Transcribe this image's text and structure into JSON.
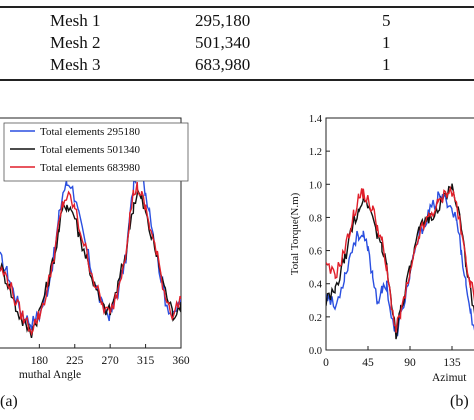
{
  "mesh_table": {
    "rows": [
      {
        "name": "Mesh 1",
        "elements": "295,180",
        "value": "5"
      },
      {
        "name": "Mesh 2",
        "elements": "501,340",
        "value": "1"
      },
      {
        "name": "Mesh 3",
        "elements": "683,980",
        "value": "1"
      }
    ]
  },
  "panel_labels": {
    "a": "(a)",
    "b": "(b)"
  },
  "chart_data": [
    {
      "type": "line",
      "xlabel": "muthal Angle",
      "ylabel": "",
      "xlim": [
        130,
        360
      ],
      "ylim": [
        0,
        1.4
      ],
      "xticks": [
        "180",
        "225",
        "270",
        "315",
        "360"
      ],
      "legend_placement": "top-left",
      "colors": {
        "Total elements 295180": "#2a4fe0",
        "Total elements 501340": "#111111",
        "Total elements 683980": "#e01f2a"
      },
      "series": [
        {
          "name": "Total elements 295180",
          "x": [
            130,
            140,
            150,
            160,
            170,
            180,
            190,
            200,
            205,
            210,
            215,
            220,
            225,
            230,
            240,
            250,
            260,
            270,
            280,
            290,
            295,
            300,
            305,
            310,
            315,
            320,
            330,
            340,
            350,
            360
          ],
          "y": [
            0.55,
            0.45,
            0.3,
            0.2,
            0.15,
            0.2,
            0.35,
            0.6,
            0.8,
            0.95,
            1.0,
            1.0,
            0.92,
            0.8,
            0.6,
            0.4,
            0.25,
            0.2,
            0.35,
            0.55,
            0.8,
            1.0,
            1.1,
            1.05,
            0.95,
            0.85,
            0.55,
            0.3,
            0.18,
            0.3
          ]
        },
        {
          "name": "Total elements 501340",
          "x": [
            130,
            140,
            150,
            160,
            170,
            180,
            190,
            200,
            205,
            210,
            215,
            220,
            225,
            230,
            240,
            250,
            260,
            270,
            280,
            290,
            295,
            300,
            305,
            310,
            315,
            320,
            330,
            340,
            350,
            360
          ],
          "y": [
            0.5,
            0.4,
            0.25,
            0.15,
            0.1,
            0.22,
            0.38,
            0.58,
            0.72,
            0.85,
            0.88,
            0.85,
            0.8,
            0.7,
            0.55,
            0.38,
            0.25,
            0.22,
            0.38,
            0.58,
            0.75,
            0.88,
            0.95,
            0.9,
            0.82,
            0.72,
            0.55,
            0.35,
            0.2,
            0.28
          ]
        },
        {
          "name": "Total elements 683980",
          "x": [
            130,
            140,
            150,
            160,
            170,
            180,
            190,
            200,
            205,
            210,
            215,
            220,
            225,
            230,
            240,
            250,
            260,
            270,
            280,
            290,
            295,
            300,
            305,
            310,
            315,
            320,
            330,
            340,
            350,
            360
          ],
          "y": [
            0.48,
            0.42,
            0.28,
            0.18,
            0.12,
            0.2,
            0.35,
            0.6,
            0.75,
            0.88,
            0.92,
            0.9,
            0.85,
            0.75,
            0.58,
            0.4,
            0.26,
            0.2,
            0.36,
            0.6,
            0.8,
            0.95,
            0.98,
            0.92,
            0.85,
            0.75,
            0.55,
            0.32,
            0.2,
            0.3
          ]
        }
      ]
    },
    {
      "type": "line",
      "xlabel": "Azimut",
      "ylabel": "Total Torque(N.m)",
      "xlim": [
        0,
        165
      ],
      "ylim": [
        0.0,
        1.4
      ],
      "yticks": [
        "0.0",
        "0.2",
        "0.4",
        "0.6",
        "0.8",
        "1.0",
        "1.2",
        "1.4"
      ],
      "xticks": [
        "0",
        "45",
        "90",
        "135"
      ],
      "series": [
        {
          "name": "Total elements 295180",
          "x": [
            0,
            10,
            20,
            30,
            35,
            40,
            45,
            50,
            55,
            60,
            65,
            70,
            75,
            80,
            90,
            100,
            110,
            120,
            130,
            135,
            140,
            145,
            150,
            155,
            160,
            165
          ],
          "y": [
            0.35,
            0.25,
            0.45,
            0.65,
            0.7,
            0.68,
            0.6,
            0.45,
            0.3,
            0.35,
            0.4,
            0.2,
            0.08,
            0.2,
            0.45,
            0.7,
            0.82,
            0.92,
            0.9,
            0.85,
            0.78,
            0.6,
            0.4,
            0.22,
            0.12,
            0.3
          ]
        },
        {
          "name": "Total elements 501340",
          "x": [
            0,
            10,
            20,
            30,
            35,
            40,
            45,
            50,
            55,
            60,
            65,
            70,
            75,
            80,
            90,
            100,
            110,
            120,
            130,
            135,
            140,
            145,
            150,
            155,
            160,
            165
          ],
          "y": [
            0.3,
            0.35,
            0.55,
            0.78,
            0.85,
            0.92,
            0.88,
            0.8,
            0.7,
            0.62,
            0.5,
            0.3,
            0.1,
            0.25,
            0.48,
            0.72,
            0.8,
            0.85,
            0.95,
            0.98,
            0.9,
            0.72,
            0.52,
            0.35,
            0.22,
            0.3
          ]
        },
        {
          "name": "Total elements 683980",
          "x": [
            0,
            10,
            20,
            30,
            35,
            40,
            45,
            50,
            55,
            60,
            65,
            70,
            75,
            80,
            90,
            100,
            110,
            120,
            130,
            135,
            140,
            145,
            150,
            155,
            160,
            165
          ],
          "y": [
            0.5,
            0.45,
            0.6,
            0.82,
            0.92,
            0.95,
            0.9,
            0.85,
            0.75,
            0.65,
            0.48,
            0.28,
            0.12,
            0.22,
            0.45,
            0.7,
            0.8,
            0.88,
            0.96,
            0.95,
            0.88,
            0.7,
            0.55,
            0.4,
            0.3,
            0.38
          ]
        }
      ]
    }
  ]
}
